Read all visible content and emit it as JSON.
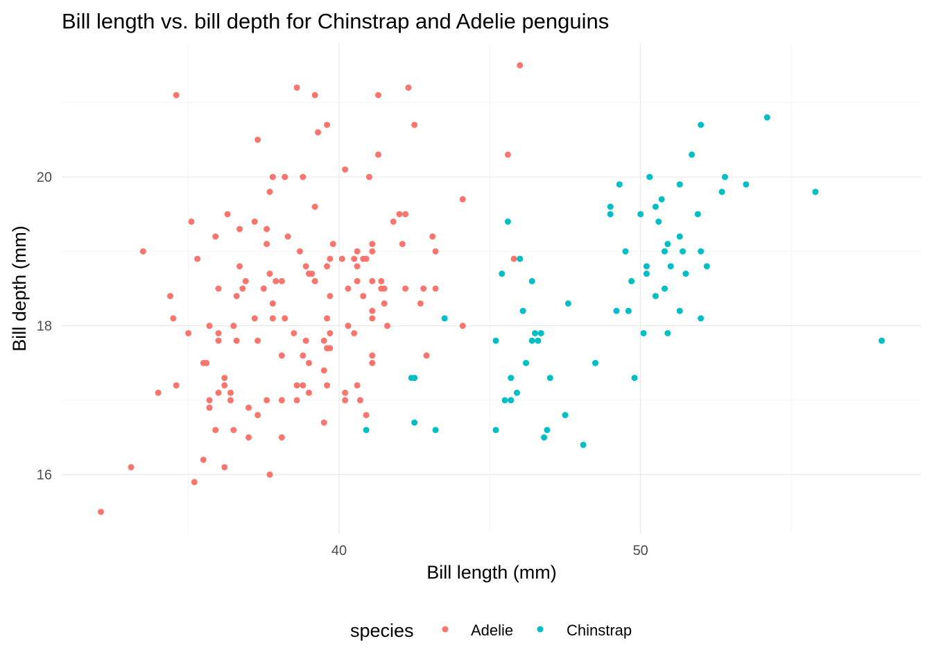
{
  "chart_data": {
    "type": "scatter",
    "title": "Bill length vs. bill depth for Chinstrap and Adelie penguins",
    "xlabel": "Bill length (mm)",
    "ylabel": "Bill depth (mm)",
    "xlim": [
      30.8,
      59.3
    ],
    "ylim": [
      15.2,
      21.8
    ],
    "x_ticks": [
      40,
      50
    ],
    "x_tick_labels": [
      "40",
      "50"
    ],
    "x_minor": [
      35,
      45,
      55
    ],
    "y_ticks": [
      16,
      18,
      20
    ],
    "y_tick_labels": [
      "16",
      "18",
      "20"
    ],
    "y_minor": [
      17,
      19,
      21
    ],
    "grid": true,
    "legend": {
      "title": "species",
      "placement": "bottom"
    },
    "series": [
      {
        "name": "Adelie",
        "color": "#F8766D",
        "points": [
          [
            32.1,
            15.5
          ],
          [
            33.1,
            16.1
          ],
          [
            33.5,
            19.0
          ],
          [
            34.0,
            17.1
          ],
          [
            34.4,
            18.4
          ],
          [
            34.5,
            18.1
          ],
          [
            34.6,
            21.1
          ],
          [
            34.6,
            17.2
          ],
          [
            35.0,
            17.9
          ],
          [
            35.1,
            19.4
          ],
          [
            35.2,
            15.9
          ],
          [
            35.3,
            18.9
          ],
          [
            35.5,
            16.2
          ],
          [
            35.5,
            17.5
          ],
          [
            35.6,
            17.5
          ],
          [
            35.7,
            18.0
          ],
          [
            35.7,
            17.0
          ],
          [
            35.7,
            16.9
          ],
          [
            35.9,
            19.2
          ],
          [
            35.9,
            16.6
          ],
          [
            36.0,
            18.5
          ],
          [
            36.0,
            17.9
          ],
          [
            36.0,
            17.8
          ],
          [
            36.0,
            17.1
          ],
          [
            36.2,
            17.3
          ],
          [
            36.2,
            17.2
          ],
          [
            36.2,
            16.1
          ],
          [
            36.3,
            19.5
          ],
          [
            36.4,
            17.1
          ],
          [
            36.4,
            17.0
          ],
          [
            36.5,
            18.0
          ],
          [
            36.5,
            16.6
          ],
          [
            36.6,
            18.4
          ],
          [
            36.6,
            17.8
          ],
          [
            36.7,
            19.3
          ],
          [
            36.7,
            18.8
          ],
          [
            36.8,
            18.5
          ],
          [
            36.9,
            18.6
          ],
          [
            37.0,
            16.9
          ],
          [
            37.0,
            16.5
          ],
          [
            37.2,
            18.1
          ],
          [
            37.2,
            19.4
          ],
          [
            37.3,
            20.5
          ],
          [
            37.3,
            17.8
          ],
          [
            37.3,
            16.8
          ],
          [
            37.5,
            18.5
          ],
          [
            37.6,
            19.3
          ],
          [
            37.6,
            19.1
          ],
          [
            37.6,
            17.0
          ],
          [
            37.7,
            19.8
          ],
          [
            37.7,
            16.0
          ],
          [
            37.7,
            18.7
          ],
          [
            37.8,
            20.0
          ],
          [
            37.8,
            18.3
          ],
          [
            37.8,
            18.1
          ],
          [
            37.9,
            18.6
          ],
          [
            38.1,
            18.6
          ],
          [
            38.1,
            17.6
          ],
          [
            38.1,
            17.0
          ],
          [
            38.1,
            16.5
          ],
          [
            38.2,
            20.0
          ],
          [
            38.2,
            18.1
          ],
          [
            38.3,
            19.2
          ],
          [
            38.5,
            17.9
          ],
          [
            38.6,
            21.2
          ],
          [
            38.6,
            17.2
          ],
          [
            38.6,
            17.0
          ],
          [
            38.7,
            19.0
          ],
          [
            38.8,
            20.0
          ],
          [
            38.8,
            17.6
          ],
          [
            38.8,
            17.2
          ],
          [
            38.9,
            18.8
          ],
          [
            38.9,
            17.8
          ],
          [
            39.0,
            18.7
          ],
          [
            39.0,
            17.5
          ],
          [
            39.0,
            17.1
          ],
          [
            39.1,
            18.7
          ],
          [
            39.2,
            21.1
          ],
          [
            39.2,
            19.6
          ],
          [
            39.2,
            18.6
          ],
          [
            39.3,
            20.6
          ],
          [
            39.5,
            17.8
          ],
          [
            39.5,
            17.4
          ],
          [
            39.5,
            16.7
          ],
          [
            39.6,
            20.7
          ],
          [
            39.6,
            18.8
          ],
          [
            39.6,
            18.1
          ],
          [
            39.6,
            17.2
          ],
          [
            39.6,
            17.7
          ],
          [
            39.7,
            18.9
          ],
          [
            39.7,
            18.4
          ],
          [
            39.7,
            17.9
          ],
          [
            39.7,
            17.7
          ],
          [
            39.8,
            19.1
          ],
          [
            40.1,
            18.9
          ],
          [
            40.2,
            20.1
          ],
          [
            40.2,
            17.1
          ],
          [
            40.2,
            17.0
          ],
          [
            40.3,
            18.0
          ],
          [
            40.3,
            18.5
          ],
          [
            40.5,
            18.9
          ],
          [
            40.5,
            17.9
          ],
          [
            40.6,
            19.0
          ],
          [
            40.6,
            18.8
          ],
          [
            40.6,
            18.6
          ],
          [
            40.6,
            17.2
          ],
          [
            40.7,
            17.0
          ],
          [
            40.8,
            18.9
          ],
          [
            40.8,
            18.4
          ],
          [
            40.9,
            18.9
          ],
          [
            40.9,
            16.8
          ],
          [
            41.0,
            20.0
          ],
          [
            41.1,
            19.0
          ],
          [
            41.1,
            19.1
          ],
          [
            41.1,
            18.6
          ],
          [
            41.1,
            18.2
          ],
          [
            41.1,
            18.1
          ],
          [
            41.1,
            17.6
          ],
          [
            41.1,
            17.5
          ],
          [
            41.3,
            21.1
          ],
          [
            41.3,
            20.3
          ],
          [
            41.4,
            18.5
          ],
          [
            41.4,
            18.6
          ],
          [
            41.5,
            18.5
          ],
          [
            41.5,
            18.3
          ],
          [
            41.6,
            18.0
          ],
          [
            41.8,
            19.4
          ],
          [
            42.0,
            19.5
          ],
          [
            42.1,
            19.1
          ],
          [
            42.2,
            19.5
          ],
          [
            42.2,
            18.5
          ],
          [
            42.3,
            21.2
          ],
          [
            42.5,
            20.7
          ],
          [
            42.7,
            18.3
          ],
          [
            42.8,
            18.5
          ],
          [
            42.9,
            17.6
          ],
          [
            43.1,
            19.2
          ],
          [
            43.2,
            19.0
          ],
          [
            43.2,
            18.5
          ],
          [
            44.1,
            19.7
          ],
          [
            44.1,
            18.0
          ],
          [
            45.6,
            20.3
          ],
          [
            45.8,
            18.9
          ],
          [
            46.0,
            21.5
          ]
        ]
      },
      {
        "name": "Chinstrap",
        "color": "#00BFC4",
        "points": [
          [
            40.9,
            16.6
          ],
          [
            42.4,
            17.3
          ],
          [
            42.5,
            17.3
          ],
          [
            42.5,
            16.7
          ],
          [
            43.2,
            16.6
          ],
          [
            43.5,
            18.1
          ],
          [
            45.2,
            16.6
          ],
          [
            45.2,
            17.8
          ],
          [
            45.4,
            18.7
          ],
          [
            45.5,
            17.0
          ],
          [
            45.6,
            19.4
          ],
          [
            45.7,
            17.3
          ],
          [
            45.7,
            17.0
          ],
          [
            45.9,
            17.1
          ],
          [
            46.0,
            18.9
          ],
          [
            46.1,
            18.2
          ],
          [
            46.2,
            17.5
          ],
          [
            46.4,
            18.6
          ],
          [
            46.4,
            17.8
          ],
          [
            46.5,
            17.9
          ],
          [
            46.6,
            17.8
          ],
          [
            46.7,
            17.9
          ],
          [
            46.8,
            16.5
          ],
          [
            46.9,
            16.6
          ],
          [
            47.0,
            17.3
          ],
          [
            47.5,
            16.8
          ],
          [
            47.6,
            18.3
          ],
          [
            48.1,
            16.4
          ],
          [
            48.5,
            17.5
          ],
          [
            49.0,
            19.6
          ],
          [
            49.0,
            19.5
          ],
          [
            49.2,
            18.2
          ],
          [
            49.3,
            19.9
          ],
          [
            49.5,
            19.0
          ],
          [
            49.6,
            18.2
          ],
          [
            49.7,
            18.6
          ],
          [
            49.8,
            17.3
          ],
          [
            50.0,
            19.5
          ],
          [
            50.1,
            17.9
          ],
          [
            50.2,
            18.8
          ],
          [
            50.2,
            18.7
          ],
          [
            50.3,
            20.0
          ],
          [
            50.5,
            19.6
          ],
          [
            50.5,
            18.4
          ],
          [
            50.6,
            19.4
          ],
          [
            50.7,
            19.7
          ],
          [
            50.8,
            19.0
          ],
          [
            50.8,
            18.5
          ],
          [
            50.9,
            19.1
          ],
          [
            50.9,
            17.9
          ],
          [
            51.0,
            18.8
          ],
          [
            51.3,
            19.9
          ],
          [
            51.3,
            19.2
          ],
          [
            51.3,
            18.2
          ],
          [
            51.4,
            19.0
          ],
          [
            51.5,
            18.7
          ],
          [
            51.7,
            20.3
          ],
          [
            51.9,
            19.5
          ],
          [
            52.0,
            20.7
          ],
          [
            52.0,
            19.0
          ],
          [
            52.0,
            18.1
          ],
          [
            52.2,
            18.8
          ],
          [
            52.7,
            19.8
          ],
          [
            52.8,
            20.0
          ],
          [
            53.5,
            19.9
          ],
          [
            54.2,
            20.8
          ],
          [
            55.8,
            19.8
          ],
          [
            58.0,
            17.8
          ]
        ]
      }
    ]
  }
}
